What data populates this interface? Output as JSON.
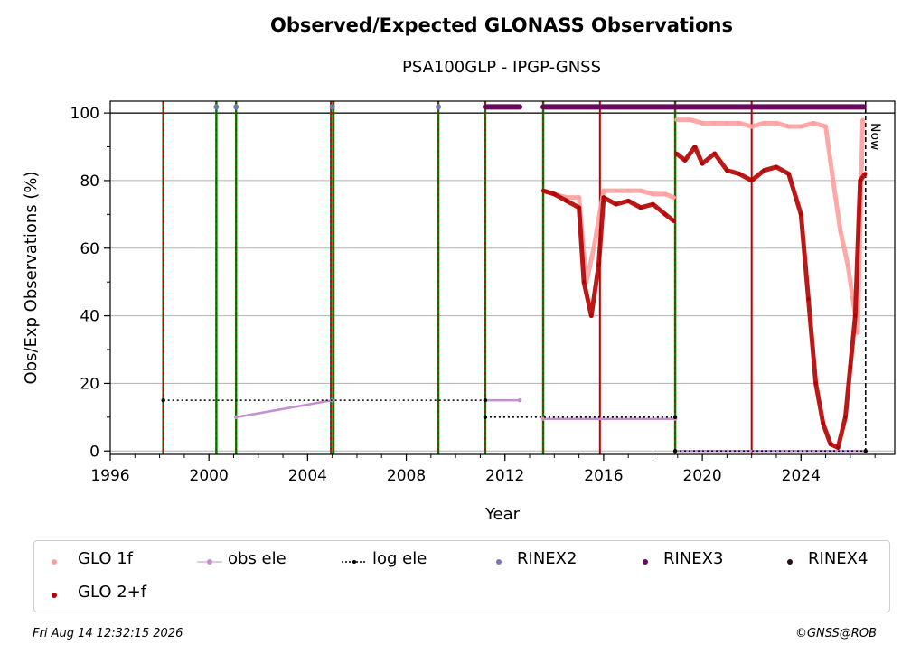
{
  "chart_data": {
    "type": "scatter",
    "title": "Observed/Expected GLONASS Observations",
    "subtitle": "PSA100GLP - IPGP-GNSS",
    "xlabel": "Year",
    "ylabel": "Obs/Exp Observations (%)",
    "xlim": [
      1996,
      2027.8
    ],
    "ylim": [
      -1,
      103.5
    ],
    "x_ticks": [
      1996,
      2000,
      2004,
      2008,
      2012,
      2016,
      2020,
      2024
    ],
    "y_ticks": [
      0,
      20,
      40,
      60,
      80,
      100
    ],
    "grid": "horizontal",
    "now_label": "Now",
    "now_x": 2026.62,
    "colors": {
      "glo1f": "#ff9f9f",
      "glo2f": "#b30000",
      "obs_ele": "#c38fd0",
      "log_ele": "#000000",
      "rinex2": "#7d72bd",
      "rinex3": "#6a0a5f",
      "rinex4": "#2b0a20",
      "event_red": "#c00000",
      "event_green": "#008000"
    },
    "event_lines": [
      {
        "x": 1998.15,
        "style": "green-red"
      },
      {
        "x": 2000.3,
        "style": "green-red"
      },
      {
        "x": 2001.1,
        "style": "green-red"
      },
      {
        "x": 2004.95,
        "style": "green-red"
      },
      {
        "x": 2005.05,
        "style": "green-red"
      },
      {
        "x": 2009.3,
        "style": "green-red"
      },
      {
        "x": 2011.2,
        "style": "green-red"
      },
      {
        "x": 2013.55,
        "style": "green-red"
      },
      {
        "x": 2015.85,
        "style": "red"
      },
      {
        "x": 2018.9,
        "style": "green-red"
      },
      {
        "x": 2022.0,
        "style": "red"
      }
    ],
    "series": [
      {
        "name": "GLO 1f",
        "segments": [
          {
            "x": [
              2013.55,
              2014.0,
              2014.5,
              2015.0,
              2015.3,
              2015.6,
              2016.0,
              2016.5,
              2017.0,
              2017.5,
              2018.0,
              2018.5,
              2018.85
            ],
            "y": [
              77,
              76,
              75,
              75,
              50,
              60,
              77,
              77,
              77,
              77,
              76,
              76,
              75
            ]
          },
          {
            "x": [
              2018.95,
              2019.5,
              2020.0,
              2020.5,
              2021.0,
              2021.5,
              2022.0,
              2022.5,
              2023.0,
              2023.5,
              2024.0,
              2024.5,
              2025.0,
              2025.3,
              2025.6,
              2025.9,
              2026.1,
              2026.3,
              2026.5
            ],
            "y": [
              98,
              98,
              97,
              97,
              97,
              97,
              96,
              97,
              97,
              96,
              96,
              97,
              96,
              80,
              65,
              55,
              45,
              35,
              98
            ]
          }
        ]
      },
      {
        "name": "GLO 2+f",
        "segments": [
          {
            "x": [
              2013.55,
              2014.0,
              2014.5,
              2015.0,
              2015.2,
              2015.5,
              2015.8,
              2016.0,
              2016.5,
              2017.0,
              2017.5,
              2018.0,
              2018.5,
              2018.85
            ],
            "y": [
              77,
              76,
              74,
              72,
              50,
              40,
              55,
              75,
              73,
              74,
              72,
              73,
              70,
              68
            ]
          },
          {
            "x": [
              2018.95,
              2019.3,
              2019.7,
              2020.0,
              2020.5,
              2021.0,
              2021.5,
              2022.0,
              2022.5,
              2023.0,
              2023.5,
              2024.0,
              2024.3,
              2024.6,
              2024.9,
              2025.2,
              2025.5,
              2025.8,
              2026.0,
              2026.2,
              2026.4,
              2026.6
            ],
            "y": [
              88,
              86,
              90,
              85,
              88,
              83,
              82,
              80,
              83,
              84,
              82,
              70,
              45,
              20,
              8,
              2,
              1,
              10,
              25,
              40,
              80,
              82
            ]
          }
        ]
      },
      {
        "name": "obs ele",
        "segments": [
          {
            "x": [
              2001.1,
              2005.0
            ],
            "y": [
              10,
              15
            ]
          },
          {
            "x": [
              2011.2,
              2012.6
            ],
            "y": [
              15,
              15
            ]
          },
          {
            "x": [
              2013.55,
              2018.9
            ],
            "y": [
              9.5,
              9.5
            ]
          },
          {
            "x": [
              2018.9,
              2026.6
            ],
            "y": [
              0,
              0
            ]
          }
        ]
      },
      {
        "name": "log ele",
        "segments": [
          {
            "x": [
              1998.15,
              2011.2
            ],
            "y": [
              15,
              15
            ]
          },
          {
            "x": [
              2011.2,
              2018.9
            ],
            "y": [
              10,
              10
            ]
          },
          {
            "x": [
              2018.9,
              2026.62
            ],
            "y": [
              0,
              0
            ]
          }
        ]
      },
      {
        "name": "RINEX2",
        "x": [
          2000.3,
          2001.1,
          2005.0,
          2009.3
        ],
        "y": [
          101.8,
          101.8,
          101.8,
          101.8
        ]
      },
      {
        "name": "RINEX3",
        "segments": [
          {
            "x": [
              2011.2,
              2012.6
            ],
            "y": [
              101.8,
              101.8
            ]
          },
          {
            "x": [
              2013.55,
              2026.55
            ],
            "y": [
              101.8,
              101.8
            ]
          }
        ]
      },
      {
        "name": "RINEX4",
        "x": [],
        "y": []
      }
    ],
    "legend": {
      "placement": "bottom",
      "entries": [
        "GLO 1f",
        "obs ele",
        "log ele",
        "RINEX2",
        "RINEX3",
        "RINEX4",
        "GLO 2+f"
      ]
    }
  },
  "footer": {
    "timestamp": "Fri Aug 14 12:32:15 2026",
    "copyright": "©GNSS@ROB"
  }
}
